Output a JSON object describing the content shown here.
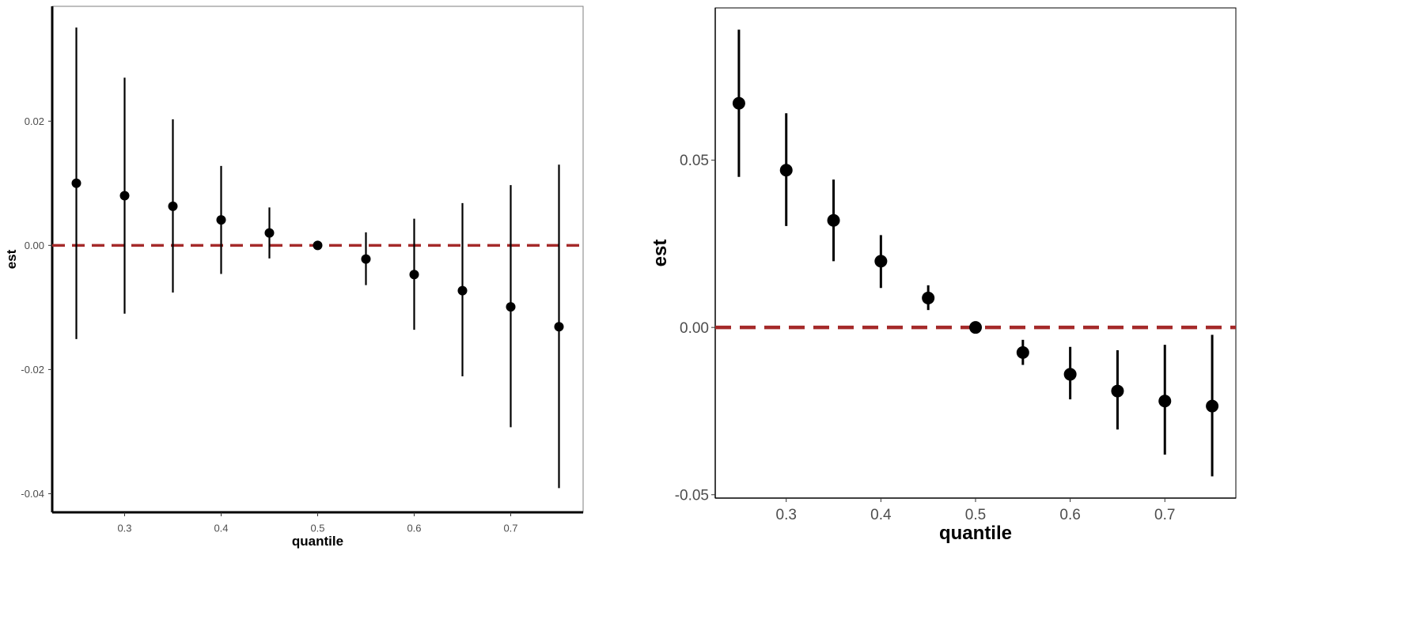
{
  "colors": {
    "points": "#000000",
    "reference_line": "#a52a2a",
    "axis": "#000000",
    "tick_text": "#4d4d4d"
  },
  "chart_data": [
    {
      "type": "scatter",
      "xlabel": "quantile",
      "ylabel": "est",
      "x": [
        0.25,
        0.3,
        0.35,
        0.4,
        0.45,
        0.5,
        0.55,
        0.6,
        0.65,
        0.7,
        0.75
      ],
      "series": [
        {
          "values": [
            0.01,
            0.008,
            0.0063,
            0.0041,
            0.002,
            0.0,
            -0.0022,
            -0.0047,
            -0.0073,
            -0.0099,
            -0.0131
          ],
          "lower": [
            -0.0151,
            -0.011,
            -0.0076,
            -0.0046,
            -0.0021,
            0.0,
            -0.0064,
            -0.0136,
            -0.0211,
            -0.0293,
            -0.0391
          ],
          "upper": [
            0.0351,
            0.027,
            0.0203,
            0.0128,
            0.0061,
            0.0,
            0.0021,
            0.0043,
            0.0068,
            0.0097,
            0.013
          ]
        }
      ],
      "reference_line": {
        "y": 0.0,
        "style": "dashed"
      },
      "xticks": [
        0.3,
        0.4,
        0.5,
        0.6,
        0.7
      ],
      "xtick_labels": [
        "0.3",
        "0.4",
        "0.5",
        "0.6",
        "0.7"
      ],
      "yticks": [
        -0.04,
        -0.02,
        0.0,
        0.02
      ],
      "ytick_labels": [
        "-0.04",
        "-0.02",
        "0.00",
        "0.02"
      ],
      "xlim": [
        0.225,
        0.775
      ],
      "ylim": [
        -0.043,
        0.0385
      ],
      "grid": false
    },
    {
      "type": "scatter",
      "xlabel": "quantile",
      "ylabel": "est",
      "x": [
        0.25,
        0.3,
        0.35,
        0.4,
        0.45,
        0.5,
        0.55,
        0.6,
        0.65,
        0.7,
        0.75
      ],
      "series": [
        {
          "values": [
            0.067,
            0.047,
            0.032,
            0.0198,
            0.0088,
            0.0,
            -0.0075,
            -0.014,
            -0.019,
            -0.022,
            -0.0235
          ],
          "lower": [
            0.045,
            0.0303,
            0.0198,
            0.0118,
            0.0052,
            0.0,
            -0.0112,
            -0.0215,
            -0.0305,
            -0.038,
            -0.0445
          ],
          "upper": [
            0.089,
            0.064,
            0.0442,
            0.0276,
            0.0126,
            0.0,
            -0.0037,
            -0.0058,
            -0.0068,
            -0.0052,
            -0.0022
          ]
        }
      ],
      "reference_line": {
        "y": 0.0,
        "style": "dashed"
      },
      "xticks": [
        0.3,
        0.4,
        0.5,
        0.6,
        0.7
      ],
      "xtick_labels": [
        "0.3",
        "0.4",
        "0.5",
        "0.6",
        "0.7"
      ],
      "yticks": [
        -0.05,
        0.0,
        0.05
      ],
      "ytick_labels": [
        "-0.05",
        "0.00",
        "0.05"
      ],
      "xlim": [
        0.225,
        0.775
      ],
      "ylim": [
        -0.051,
        0.0955
      ],
      "grid": false
    }
  ]
}
